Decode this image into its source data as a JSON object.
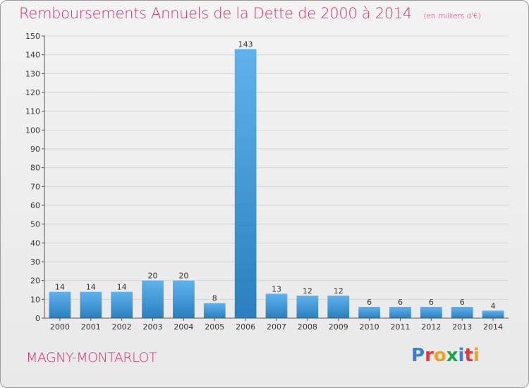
{
  "chart_data": {
    "type": "bar",
    "title": "Remboursements Annuels de la Dette de 2000 à 2014",
    "subtitle": "(en milliers d'€)",
    "categories": [
      "2000",
      "2001",
      "2002",
      "2003",
      "2004",
      "2005",
      "2006",
      "2007",
      "2008",
      "2009",
      "2010",
      "2011",
      "2012",
      "2013",
      "2014"
    ],
    "values": [
      14,
      14,
      14,
      20,
      20,
      8,
      143,
      13,
      12,
      12,
      6,
      6,
      6,
      6,
      4
    ],
    "ylim": [
      0,
      150
    ],
    "yticks": [
      0,
      10,
      20,
      30,
      40,
      50,
      60,
      70,
      80,
      90,
      100,
      110,
      120,
      130,
      140,
      150
    ],
    "xlabel": "",
    "ylabel": "",
    "grid": true
  },
  "footer": {
    "location": "MAGNY-MONTARLOT",
    "logo": [
      "P",
      "r",
      "o",
      "x",
      "i",
      "t",
      "i"
    ]
  },
  "colors": {
    "title": "#d0306e",
    "bar_light": "#5fb2ec",
    "bar_dark": "#2a7fc0",
    "logo": [
      "#3a7fd0",
      "#e23a3a",
      "#f0a020",
      "#1aa34a",
      "#3a7fd0",
      "#e23a3a",
      "#f0a020"
    ]
  }
}
